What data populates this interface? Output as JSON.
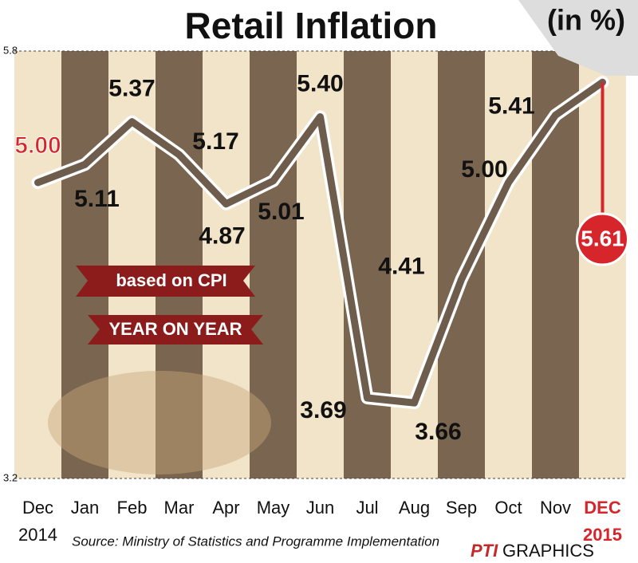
{
  "chart_data": {
    "type": "line",
    "title": "Retail Inflation",
    "subtitle": "(in %)",
    "annotations": [
      "based on CPI",
      "YEAR ON YEAR"
    ],
    "source": "Source: Ministry of Statistics and Programme Implementation",
    "credit": [
      "PTI",
      "GRAPHICS"
    ],
    "categories": [
      "Dec",
      "Jan",
      "Feb",
      "Mar",
      "Apr",
      "May",
      "Jun",
      "Jul",
      "Aug",
      "Sep",
      "Oct",
      "Nov",
      "DEC"
    ],
    "year_labels": [
      "2014",
      null,
      null,
      null,
      null,
      null,
      null,
      null,
      null,
      null,
      null,
      null,
      "2015"
    ],
    "values": [
      5.0,
      5.11,
      5.37,
      5.17,
      4.87,
      5.01,
      5.4,
      3.69,
      3.66,
      4.41,
      5.0,
      5.41,
      5.61
    ],
    "value_labels": [
      "5.00",
      "5.11",
      "5.37",
      "5.17",
      "4.87",
      "5.01",
      "5.40",
      "3.69",
      "3.66",
      "4.41",
      "5.00",
      "5.41",
      "5.61"
    ],
    "color": "#6e5d4c",
    "highlight_color": "#d7262b",
    "ylim": [
      3.2,
      5.8
    ],
    "yticks": [
      3.2,
      5.8
    ],
    "grid": true
  }
}
